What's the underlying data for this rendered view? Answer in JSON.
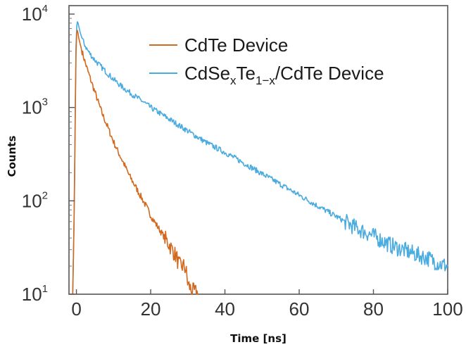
{
  "chart_data": {
    "type": "line",
    "xlabel": "Time [ns]",
    "ylabel": "Counts",
    "xlim": [
      -2,
      100
    ],
    "ylim": [
      10,
      10000
    ],
    "yscale": "log",
    "x_ticks": [
      {
        "value": 0,
        "label": "0"
      },
      {
        "value": 20,
        "label": "20"
      },
      {
        "value": 40,
        "label": "40"
      },
      {
        "value": 60,
        "label": "60"
      },
      {
        "value": 80,
        "label": "80"
      },
      {
        "value": 100,
        "label": "100"
      }
    ],
    "y_ticks": [
      {
        "value": 10,
        "base": "10",
        "exp": "1"
      },
      {
        "value": 100,
        "base": "10",
        "exp": "2"
      },
      {
        "value": 1000,
        "base": "10",
        "exp": "3"
      },
      {
        "value": 10000,
        "base": "10",
        "exp": "4"
      }
    ],
    "grid": false,
    "legend_position": "top-right",
    "series": [
      {
        "name": "CdTe Device",
        "legend": {
          "main": "CdTe Device"
        },
        "color": "#d2691e",
        "x": [
          -1.0,
          -0.7,
          -0.4,
          -0.2,
          0.0,
          0.3,
          0.6,
          1.0,
          1.5,
          2,
          3,
          4,
          5,
          6,
          7,
          8,
          9,
          10,
          11,
          12,
          13,
          14,
          15,
          16,
          17,
          18,
          19,
          20,
          21,
          22,
          23,
          24,
          25,
          26,
          27,
          27.5,
          28,
          29,
          29.5,
          30,
          31,
          32,
          33
        ],
        "y": [
          10,
          40,
          300,
          2500,
          6000,
          6800,
          5600,
          4800,
          4000,
          3400,
          2500,
          1900,
          1450,
          1100,
          850,
          680,
          540,
          430,
          350,
          290,
          240,
          195,
          165,
          140,
          118,
          100,
          84,
          70,
          60,
          52,
          45,
          39,
          34,
          29,
          25,
          21,
          20,
          20,
          18,
          13,
          11,
          10.5,
          10
        ]
      },
      {
        "name": "CdSexTe1-x/CdTe Device",
        "legend": {
          "main": "CdSe",
          "sub1": "x",
          "mid": "Te",
          "sub2": "1−x",
          "tail": "/CdTe Device"
        },
        "color": "#4aabdf",
        "x": [
          -1.0,
          -0.7,
          -0.4,
          -0.2,
          0.0,
          0.3,
          0.6,
          1.0,
          1.5,
          2,
          3,
          4,
          5,
          6,
          8,
          10,
          12,
          14,
          16,
          18,
          20,
          25,
          30,
          35,
          40,
          45,
          50,
          55,
          60,
          65,
          70,
          75,
          80,
          85,
          90,
          95,
          98,
          100
        ],
        "y": [
          10,
          40,
          400,
          3000,
          7000,
          8500,
          7500,
          6400,
          5500,
          4900,
          4100,
          3600,
          3200,
          2900,
          2400,
          2000,
          1700,
          1480,
          1300,
          1150,
          1000,
          750,
          560,
          420,
          330,
          255,
          195,
          150,
          115,
          88,
          68,
          52,
          42,
          33,
          28,
          24,
          21,
          20
        ]
      }
    ]
  }
}
